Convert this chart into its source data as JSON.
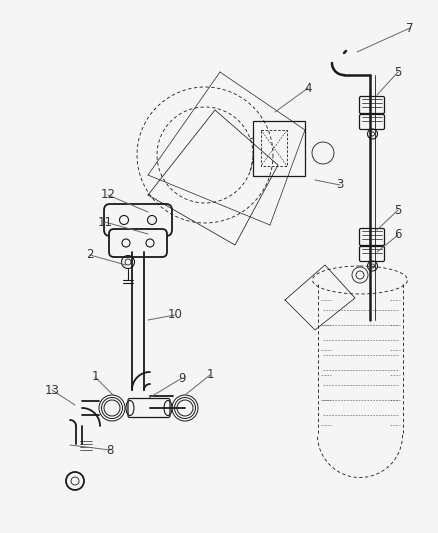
{
  "bg_color": "#f5f5f5",
  "line_color": "#1a1a1a",
  "label_color": "#333333",
  "callout_color": "#666666",
  "fig_width": 4.38,
  "fig_height": 5.33,
  "dpi": 100
}
